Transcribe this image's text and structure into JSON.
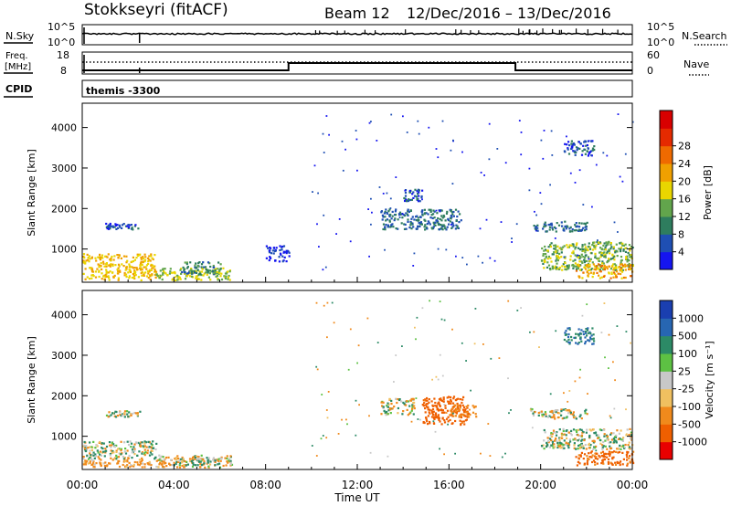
{
  "header": {
    "station": "Stokkseyri (fitACF)",
    "beam": "Beam 12",
    "dates": "12/Dec/2016 – 13/Dec/2016"
  },
  "panels": {
    "nsky_label": "N.Sky",
    "nsky_hi": "10^5",
    "nsky_lo": "10^0",
    "nsearch_label": "N.Search",
    "nsearch_hi": "10^5",
    "nsearch_lo": "10^0",
    "freq_label": "Freq.",
    "freq_unit": "[MHz]",
    "freq_hi": "18",
    "freq_lo": "8",
    "nave_label": "Nave",
    "nave_hi": "60",
    "nave_lo": "0",
    "cpid_label": "CPID",
    "cpid_value": "themis -3300"
  },
  "x_axis": {
    "label": "Time UT",
    "ticks": [
      "00:00",
      "04:00",
      "08:00",
      "12:00",
      "16:00",
      "20:00",
      "00:00"
    ]
  },
  "power_colorbar": {
    "label": "Power [dB]",
    "ticks": [
      "4",
      "8",
      "12",
      "16",
      "20",
      "24",
      "28"
    ],
    "colors": [
      "#1515f0",
      "#1f4fb3",
      "#2e7d5e",
      "#62a54c",
      "#e9d600",
      "#f0a000",
      "#ef6a00",
      "#e52a00",
      "#d80000"
    ]
  },
  "velocity_colorbar": {
    "label": "Velocity [m s⁻¹]",
    "ticks": [
      "1000",
      "500",
      "100",
      "25",
      "-25",
      "-100",
      "-500",
      "-1000"
    ],
    "colors": [
      "#1a3fb0",
      "#2766b2",
      "#2c8a66",
      "#5dc143",
      "#c8c8c8",
      "#f0c060",
      "#f08a1c",
      "#ef5f00",
      "#e80000"
    ]
  },
  "chart_data": [
    {
      "type": "heatmap",
      "panel": "power",
      "ylabel": "Slant Range [km]",
      "xlabel": "Time UT",
      "xlim_hours": [
        0,
        24
      ],
      "ylim": [
        180,
        4600
      ],
      "yticks": [
        1000,
        2000,
        3000,
        4000
      ],
      "colorbar": "Power [dB]",
      "regions": [
        {
          "t": [
            0.0,
            3.2
          ],
          "r": [
            250,
            900
          ],
          "level": 22
        },
        {
          "t": [
            1.0,
            2.5
          ],
          "r": [
            1500,
            1650
          ],
          "level": 8
        },
        {
          "t": [
            3.2,
            6.5
          ],
          "r": [
            250,
            550
          ],
          "level": 18
        },
        {
          "t": [
            4.2,
            6.0
          ],
          "r": [
            400,
            700
          ],
          "level": 12
        },
        {
          "t": [
            8.0,
            9.0
          ],
          "r": [
            700,
            1100
          ],
          "level": 6
        },
        {
          "t": [
            13.0,
            16.5
          ],
          "r": [
            1500,
            2000
          ],
          "level": 10
        },
        {
          "t": [
            14.0,
            14.8
          ],
          "r": [
            2200,
            2500
          ],
          "level": 8
        },
        {
          "t": [
            19.5,
            22.0
          ],
          "r": [
            1450,
            1700
          ],
          "level": 10
        },
        {
          "t": [
            20.0,
            24.0
          ],
          "r": [
            500,
            1200
          ],
          "level": 16
        },
        {
          "t": [
            21.5,
            24.0
          ],
          "r": [
            300,
            650
          ],
          "level": 24
        },
        {
          "t": [
            21.0,
            22.3
          ],
          "r": [
            3300,
            3700
          ],
          "level": 8
        }
      ]
    },
    {
      "type": "heatmap",
      "panel": "velocity",
      "ylabel": "Slant Range [km]",
      "xlabel": "Time UT",
      "xlim_hours": [
        0,
        24
      ],
      "ylim": [
        180,
        4600
      ],
      "yticks": [
        1000,
        2000,
        3000,
        4000
      ],
      "colorbar": "Velocity [m s⁻¹]",
      "regions": [
        {
          "t": [
            0.0,
            3.2
          ],
          "r": [
            450,
            900
          ],
          "level": 0
        },
        {
          "t": [
            0.0,
            3.0
          ],
          "r": [
            250,
            450
          ],
          "level": -150
        },
        {
          "t": [
            3.2,
            6.5
          ],
          "r": [
            250,
            550
          ],
          "level": -60
        },
        {
          "t": [
            4.2,
            6.0
          ],
          "r": [
            300,
            500
          ],
          "level": 60
        },
        {
          "t": [
            1.0,
            2.5
          ],
          "r": [
            1500,
            1650
          ],
          "level": 0
        },
        {
          "t": [
            13.0,
            14.5
          ],
          "r": [
            1550,
            1950
          ],
          "level": 0
        },
        {
          "t": [
            14.8,
            16.8
          ],
          "r": [
            1300,
            2000
          ],
          "level": -600
        },
        {
          "t": [
            16.0,
            17.2
          ],
          "r": [
            1500,
            1800
          ],
          "level": -200
        },
        {
          "t": [
            19.5,
            22.0
          ],
          "r": [
            1450,
            1700
          ],
          "level": 0
        },
        {
          "t": [
            20.0,
            24.0
          ],
          "r": [
            700,
            1200
          ],
          "level": 0
        },
        {
          "t": [
            21.5,
            24.0
          ],
          "r": [
            300,
            650
          ],
          "level": -400
        },
        {
          "t": [
            21.0,
            22.3
          ],
          "r": [
            3300,
            3700
          ],
          "level": 300
        }
      ]
    }
  ]
}
